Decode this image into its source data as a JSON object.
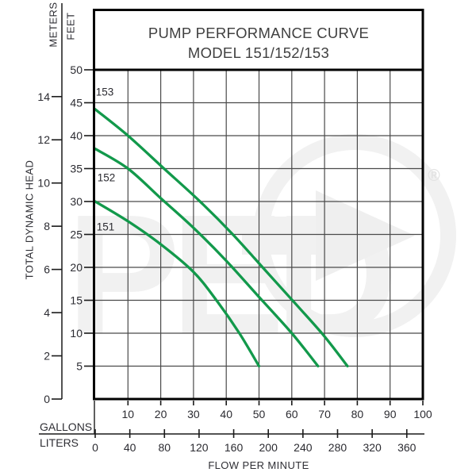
{
  "header": {
    "line1": "PUMP PERFORMANCE CURVE",
    "line2": "MODEL 151/152/153"
  },
  "watermark": {
    "letters": "PED",
    "registered_mark": "®"
  },
  "colors": {
    "curve_green": "#12994b",
    "grid": "#4a4a4a",
    "border": "#000000",
    "tick_text": "#2b2b31",
    "watermark_gray": "#f1f1f1"
  },
  "chart_data": {
    "type": "line",
    "title": "PUMP PERFORMANCE CURVE MODEL 151/152/153",
    "xlabel": "FLOW PER MINUTE",
    "ylabel": "TOTAL DYNAMIC HEAD",
    "grid": true,
    "legend_position": "labels-on-curves",
    "x_axes": [
      {
        "unit": "GALLONS",
        "ticks": [
          10,
          20,
          30,
          40,
          50,
          60,
          70,
          80,
          90,
          100
        ],
        "range": [
          0,
          100
        ]
      },
      {
        "unit": "LITERS",
        "ticks": [
          0,
          40,
          80,
          120,
          160,
          200,
          240,
          280,
          320,
          360
        ],
        "range": [
          0,
          378.5
        ],
        "gallons_per_liter": 0.26417
      }
    ],
    "y_axes": [
      {
        "unit": "FEET",
        "ticks": [
          50,
          45,
          40,
          35,
          30,
          25,
          20,
          15,
          10,
          5
        ],
        "range": [
          0,
          50
        ]
      },
      {
        "unit": "METERS",
        "ticks": [
          14,
          12,
          10,
          8,
          6,
          4,
          2,
          0
        ],
        "range": [
          0,
          15.24
        ],
        "feet_per_meter": 3.28084
      }
    ],
    "points_units": "x = gallons per minute, y = feet of head",
    "series": [
      {
        "name": "153",
        "points": [
          [
            0,
            44
          ],
          [
            10,
            40
          ],
          [
            21,
            35
          ],
          [
            32,
            30
          ],
          [
            42,
            25
          ],
          [
            52,
            19.5
          ],
          [
            62,
            14
          ],
          [
            70,
            9.5
          ],
          [
            77,
            5
          ]
        ]
      },
      {
        "name": "152",
        "points": [
          [
            0,
            38
          ],
          [
            10,
            35
          ],
          [
            20,
            30.5
          ],
          [
            30,
            26
          ],
          [
            40,
            21
          ],
          [
            50,
            15.5
          ],
          [
            60,
            10
          ],
          [
            68,
            5
          ]
        ]
      },
      {
        "name": "151",
        "points": [
          [
            0,
            30
          ],
          [
            10,
            27
          ],
          [
            20,
            23.5
          ],
          [
            30,
            19.3
          ],
          [
            37,
            15
          ],
          [
            44,
            10
          ],
          [
            50,
            5
          ]
        ]
      }
    ]
  }
}
